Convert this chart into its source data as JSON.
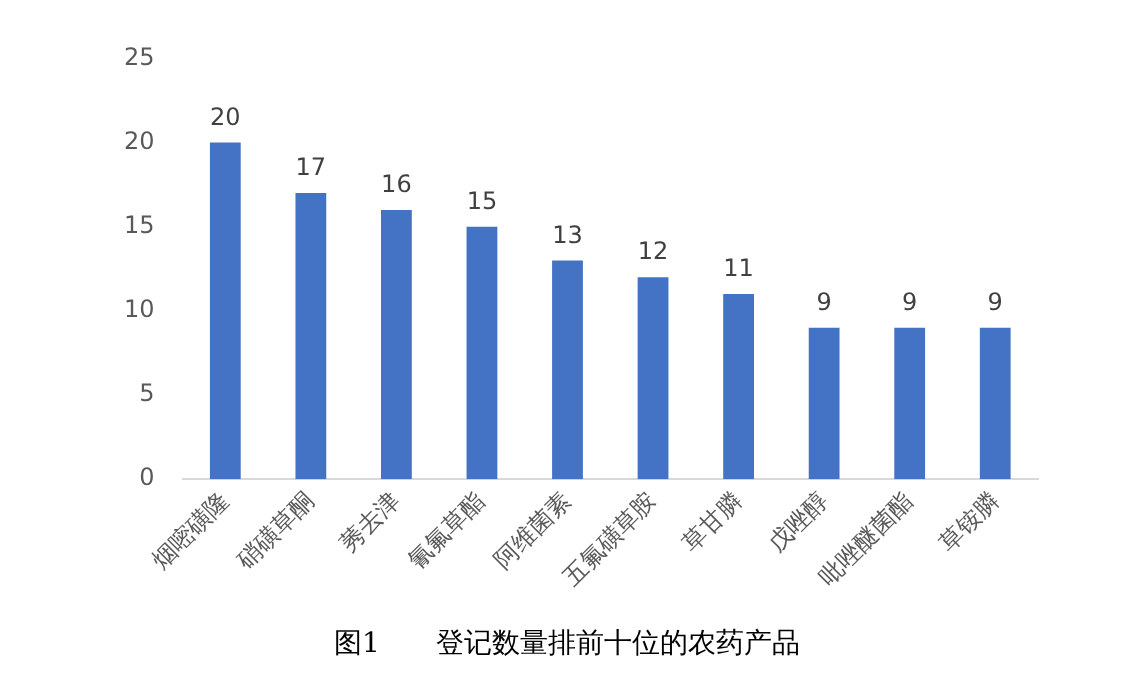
{
  "chart_data": {
    "type": "bar",
    "title": "图1　　登记数量排前十位的农药产品",
    "categories": [
      "烟嘧磺隆",
      "硝磺草酮",
      "莠去津",
      "氰氟草酯",
      "阿维菌素",
      "五氟磺草胺",
      "草甘膦",
      "戊唑醇",
      "吡唑醚菌酯",
      "草铵膦"
    ],
    "values": [
      20,
      17,
      16,
      15,
      13,
      12,
      11,
      9,
      9,
      9
    ],
    "color": "#4472c4",
    "ylim": [
      0,
      25
    ],
    "yticks": [
      0,
      5,
      10,
      15,
      20,
      25
    ],
    "grid": false,
    "data_labels": true,
    "legend": false
  }
}
